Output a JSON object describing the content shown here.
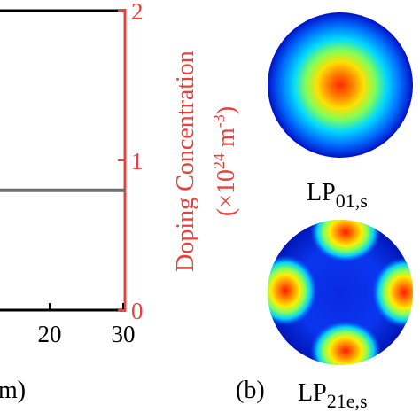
{
  "chart_data": [
    {
      "type": "line",
      "x_ticks": [
        "20",
        "30"
      ],
      "x_label_fragment": "m)",
      "xlim_visible": [
        12,
        30
      ],
      "y2_ticks": [
        "0",
        "1",
        "2"
      ],
      "y2_label_line1": "Doping Concentration",
      "y2_label_line2_prefix": "(×10",
      "y2_label_line2_exp": "24",
      "y2_label_line2_mid": " m",
      "y2_label_line2_exp2": "-3",
      "y2_label_line2_suffix": ")",
      "y2lim": [
        0,
        2
      ],
      "series": [
        {
          "x": [
            12,
            30
          ],
          "y": [
            0.8,
            0.8
          ]
        }
      ]
    },
    {
      "type": "heatmap",
      "panel_label": "(b)",
      "modes": [
        {
          "base": "LP",
          "sub": "01,s",
          "lobes": 1
        },
        {
          "base": "LP",
          "sub": "21e,s",
          "lobes": 4
        }
      ]
    }
  ],
  "colors": {
    "axis_black": "#000000",
    "right_axis_red": "#e8403a",
    "curve_gray": "#6e6e6e"
  }
}
